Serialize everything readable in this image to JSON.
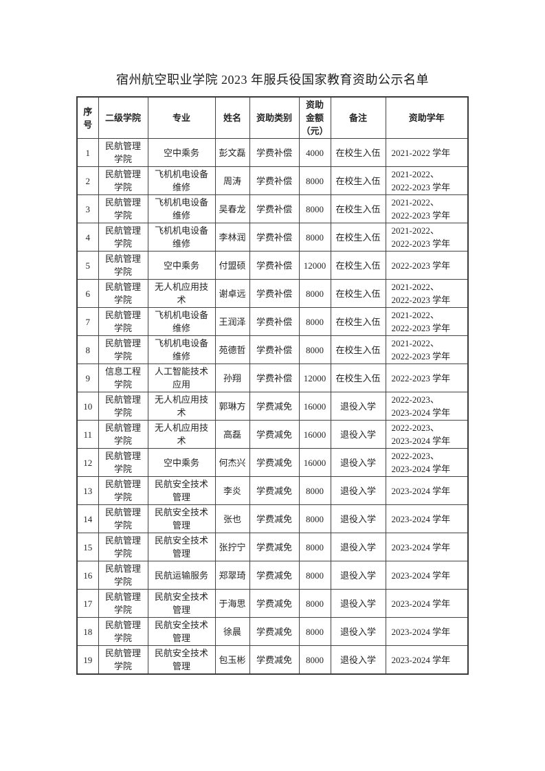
{
  "page": {
    "title": "宿州航空职业学院 2023 年服兵役国家教育资助公示名单"
  },
  "table": {
    "headers": [
      "序\n号",
      "二级学院",
      "专业",
      "姓名",
      "资助类别",
      "资助\n金额\n（元）",
      "备注",
      "资助学年"
    ],
    "rows": [
      [
        "1",
        "民航管理\n学院",
        "空中乘务",
        "彭文磊",
        "学费补偿",
        "4000",
        "在校生入伍",
        "2021-2022 学年"
      ],
      [
        "2",
        "民航管理\n学院",
        "飞机机电设备\n维修",
        "周涛",
        "学费补偿",
        "8000",
        "在校生入伍",
        "2021-2022、\n2022-2023 学年"
      ],
      [
        "3",
        "民航管理\n学院",
        "飞机机电设备\n维修",
        "吴春龙",
        "学费补偿",
        "8000",
        "在校生入伍",
        "2021-2022、\n2022-2023 学年"
      ],
      [
        "4",
        "民航管理\n学院",
        "飞机机电设备\n维修",
        "李林润",
        "学费补偿",
        "8000",
        "在校生入伍",
        "2021-2022、\n2022-2023 学年"
      ],
      [
        "5",
        "民航管理\n学院",
        "空中乘务",
        "付盟硕",
        "学费补偿",
        "12000",
        "在校生入伍",
        "2022-2023 学年"
      ],
      [
        "6",
        "民航管理\n学院",
        "无人机应用技\n术",
        "谢卓远",
        "学费补偿",
        "8000",
        "在校生入伍",
        "2021-2022、\n2022-2023 学年"
      ],
      [
        "7",
        "民航管理\n学院",
        "飞机机电设备\n维修",
        "王润泽",
        "学费补偿",
        "8000",
        "在校生入伍",
        "2021-2022、\n2022-2023 学年"
      ],
      [
        "8",
        "民航管理\n学院",
        "飞机机电设备\n维修",
        "苑德哲",
        "学费补偿",
        "8000",
        "在校生入伍",
        "2021-2022、\n2022-2023 学年"
      ],
      [
        "9",
        "信息工程\n学院",
        "人工智能技术\n应用",
        "孙翔",
        "学费补偿",
        "12000",
        "在校生入伍",
        "2022-2023 学年"
      ],
      [
        "10",
        "民航管理\n学院",
        "无人机应用技\n术",
        "郭琳方",
        "学费减免",
        "16000",
        "退役入学",
        "2022-2023、\n2023-2024 学年"
      ],
      [
        "11",
        "民航管理\n学院",
        "无人机应用技\n术",
        "高磊",
        "学费减免",
        "16000",
        "退役入学",
        "2022-2023、\n2023-2024 学年"
      ],
      [
        "12",
        "民航管理\n学院",
        "空中乘务",
        "何杰兴",
        "学费减免",
        "16000",
        "退役入学",
        "2022-2023、\n2023-2024 学年"
      ],
      [
        "13",
        "民航管理\n学院",
        "民航安全技术\n管理",
        "李炎",
        "学费减免",
        "8000",
        "退役入学",
        "2023-2024 学年"
      ],
      [
        "14",
        "民航管理\n学院",
        "民航安全技术\n管理",
        "张也",
        "学费减免",
        "8000",
        "退役入学",
        "2023-2024 学年"
      ],
      [
        "15",
        "民航管理\n学院",
        "民航安全技术\n管理",
        "张拧宁",
        "学费减免",
        "8000",
        "退役入学",
        "2023-2024 学年"
      ],
      [
        "16",
        "民航管理\n学院",
        "民航运输服务",
        "郑翠琦",
        "学费减免",
        "8000",
        "退役入学",
        "2023-2024 学年"
      ],
      [
        "17",
        "民航管理\n学院",
        "民航安全技术\n管理",
        "于海思",
        "学费减免",
        "8000",
        "退役入学",
        "2023-2024 学年"
      ],
      [
        "18",
        "民航管理\n学院",
        "民航安全技术\n管理",
        "徐晨",
        "学费减免",
        "8000",
        "退役入学",
        "2023-2024 学年"
      ],
      [
        "19",
        "民航管理\n学院",
        "民航安全技术\n管理",
        "包玉彬",
        "学费减免",
        "8000",
        "退役入学",
        "2023-2024 学年"
      ]
    ]
  }
}
